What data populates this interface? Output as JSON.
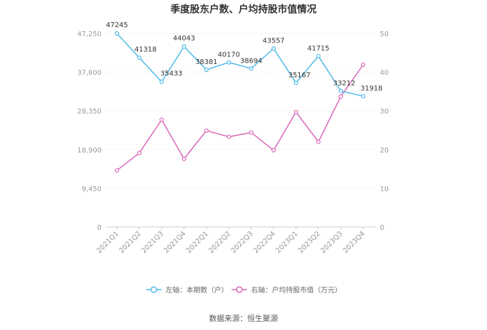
{
  "chart_data": {
    "type": "line",
    "title": "季度股东户数、户均持股市值情况",
    "categories": [
      "2021Q1",
      "2021Q2",
      "2021Q3",
      "2021Q4",
      "2022Q1",
      "2022Q2",
      "2022Q3",
      "2022Q4",
      "2023Q1",
      "2023Q2",
      "2023Q3",
      "2023Q4"
    ],
    "series": [
      {
        "name": "左轴：本期数（户）",
        "axis": "left",
        "color": "#4db8e8",
        "values": [
          47245,
          41318,
          35433,
          44043,
          38381,
          40170,
          38694,
          43557,
          35167,
          41715,
          33212,
          31918
        ],
        "data_labels": [
          "47245",
          "41318",
          "35433",
          "44043",
          "38381",
          "40170",
          "38694",
          "43557",
          "35167",
          "41715",
          "33212",
          "31918"
        ]
      },
      {
        "name": "右轴：户均持股市值（万元）",
        "axis": "right",
        "color": "#d966b8",
        "values": [
          14.6,
          19.1,
          27.7,
          17.6,
          24.9,
          23.3,
          24.4,
          19.8,
          29.7,
          22.0,
          33.7,
          41.9
        ]
      }
    ],
    "left_axis": {
      "ylim": [
        0,
        47250
      ],
      "ticks": [
        "0",
        "9,450",
        "18,900",
        "28,350",
        "37,800",
        "47,250"
      ]
    },
    "right_axis": {
      "ylim": [
        0,
        50
      ],
      "ticks": [
        "0",
        "10",
        "20",
        "30",
        "40",
        "50"
      ]
    },
    "legend_position": "bottom",
    "source": "数据来源：恒生聚源"
  }
}
